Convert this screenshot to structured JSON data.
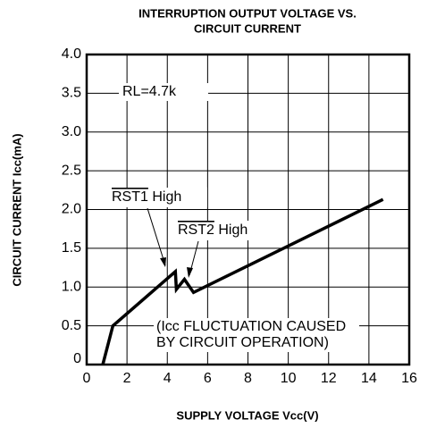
{
  "chart_data": {
    "type": "line",
    "title": [
      "INTERRUPTION OUTPUT VOLTAGE VS.",
      "CIRCUIT CURRENT"
    ],
    "x_label": "SUPPLY VOLTAGE Vcc(V)",
    "y_label": "CIRCUIT CURRENT  Icc(mA)",
    "xlim": [
      0,
      16
    ],
    "xticks": [
      0,
      2,
      4,
      6,
      8,
      10,
      12,
      14,
      16
    ],
    "ylim": [
      0,
      4
    ],
    "yticks": [
      0,
      0.5,
      1,
      1.5,
      2,
      2.5,
      3,
      3.5,
      4
    ],
    "yticklabels": [
      "0",
      "0.5",
      "1.0",
      "1.5",
      "2.0",
      "2.5",
      "3.0",
      "3.5",
      "4.0"
    ],
    "grid": true,
    "series": [
      {
        "name": "Icc",
        "color": "#000000",
        "x": [
          0.8,
          1.3,
          4.4,
          4.45,
          4.85,
          5.3,
          14.7
        ],
        "values": [
          0,
          0.5,
          1.2,
          0.97,
          1.1,
          0.93,
          2.13
        ]
      }
    ],
    "annotations": [
      {
        "text": "RL=4.7k"
      },
      {
        "over": "RST1",
        "text": " High"
      },
      {
        "over": "RST2",
        "text": " High"
      },
      {
        "text": "(Icc FLUCTUATION CAUSED"
      },
      {
        "text": "BY CIRCUIT OPERATION)"
      }
    ]
  }
}
